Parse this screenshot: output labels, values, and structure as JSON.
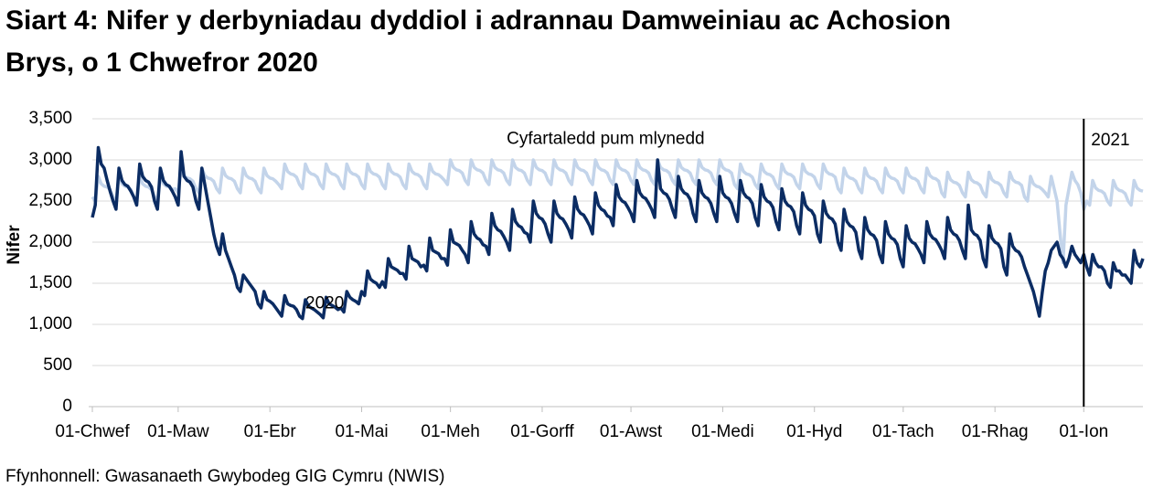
{
  "chart_data": {
    "type": "line",
    "title_lines": [
      "Siart 4: Nifer y derbyniadau dyddiol i adrannau Damweiniau ac Achosion",
      "Brys, o 1 Chwefror 2020"
    ],
    "y_label": "Nifer",
    "source": "Ffynhonnell: Gwasanaeth Gwybodeg GIG Cymru (NWIS)",
    "xlim": [
      0,
      355
    ],
    "xticks": [
      {
        "value": 0,
        "label": "01-Chwef"
      },
      {
        "value": 29,
        "label": "01-Maw"
      },
      {
        "value": 60,
        "label": "01-Ebr"
      },
      {
        "value": 91,
        "label": "01-Mai"
      },
      {
        "value": 121,
        "label": "01-Meh"
      },
      {
        "value": 152,
        "label": "01-Gorff"
      },
      {
        "value": 182,
        "label": "01-Awst"
      },
      {
        "value": 213,
        "label": "01-Medi"
      },
      {
        "value": 244,
        "label": "01-Hyd"
      },
      {
        "value": 274,
        "label": "01-Tach"
      },
      {
        "value": 305,
        "label": "01-Rhag"
      },
      {
        "value": 335,
        "label": "01-Ion"
      }
    ],
    "ylim": [
      0,
      3500
    ],
    "yticks": [
      0,
      500,
      {
        "value": 1000,
        "label": "1,000"
      },
      {
        "value": 1500,
        "label": "1,500"
      },
      {
        "value": 2000,
        "label": "2,000"
      },
      {
        "value": 2500,
        "label": "2,500"
      },
      {
        "value": 3000,
        "label": "3,000"
      },
      {
        "value": 3500,
        "label": "3,500"
      }
    ],
    "grid": true,
    "markers": [
      {
        "label": "2021",
        "x": 335
      }
    ],
    "x": [
      0,
      1,
      2,
      3,
      4,
      5,
      6,
      7,
      8,
      9,
      10,
      11,
      12,
      13,
      14,
      15,
      16,
      17,
      18,
      19,
      20,
      21,
      22,
      23,
      24,
      25,
      26,
      27,
      28,
      29,
      30,
      31,
      32,
      33,
      34,
      35,
      36,
      37,
      38,
      39,
      40,
      41,
      42,
      43,
      44,
      45,
      46,
      47,
      48,
      49,
      50,
      51,
      52,
      53,
      54,
      55,
      56,
      57,
      58,
      59,
      60,
      61,
      62,
      63,
      64,
      65,
      66,
      67,
      68,
      69,
      70,
      71,
      72,
      73,
      74,
      75,
      76,
      77,
      78,
      79,
      80,
      81,
      82,
      83,
      84,
      85,
      86,
      87,
      88,
      89,
      90,
      91,
      92,
      93,
      94,
      95,
      96,
      97,
      98,
      99,
      100,
      101,
      102,
      103,
      104,
      105,
      106,
      107,
      108,
      109,
      110,
      111,
      112,
      113,
      114,
      115,
      116,
      117,
      118,
      119,
      120,
      121,
      122,
      123,
      124,
      125,
      126,
      127,
      128,
      129,
      130,
      131,
      132,
      133,
      134,
      135,
      136,
      137,
      138,
      139,
      140,
      141,
      142,
      143,
      144,
      145,
      146,
      147,
      148,
      149,
      150,
      151,
      152,
      153,
      154,
      155,
      156,
      157,
      158,
      159,
      160,
      161,
      162,
      163,
      164,
      165,
      166,
      167,
      168,
      169,
      170,
      171,
      172,
      173,
      174,
      175,
      176,
      177,
      178,
      179,
      180,
      181,
      182,
      183,
      184,
      185,
      186,
      187,
      188,
      189,
      190,
      191,
      192,
      193,
      194,
      195,
      196,
      197,
      198,
      199,
      200,
      201,
      202,
      203,
      204,
      205,
      206,
      207,
      208,
      209,
      210,
      211,
      212,
      213,
      214,
      215,
      216,
      217,
      218,
      219,
      220,
      221,
      222,
      223,
      224,
      225,
      226,
      227,
      228,
      229,
      230,
      231,
      232,
      233,
      234,
      235,
      236,
      237,
      238,
      239,
      240,
      241,
      242,
      243,
      244,
      245,
      246,
      247,
      248,
      249,
      250,
      251,
      252,
      253,
      254,
      255,
      256,
      257,
      258,
      259,
      260,
      261,
      262,
      263,
      264,
      265,
      266,
      267,
      268,
      269,
      270,
      271,
      272,
      273,
      274,
      275,
      276,
      277,
      278,
      279,
      280,
      281,
      282,
      283,
      284,
      285,
      286,
      287,
      288,
      289,
      290,
      291,
      292,
      293,
      294,
      295,
      296,
      297,
      298,
      299,
      300,
      301,
      302,
      303,
      304,
      305,
      306,
      307,
      308,
      309,
      310,
      311,
      312,
      313,
      314,
      315,
      316,
      317,
      318,
      319,
      320,
      321,
      322,
      323,
      324,
      325,
      326,
      327,
      328,
      329,
      330,
      331,
      332,
      333,
      334,
      335,
      336,
      337,
      338,
      339,
      340,
      341,
      342,
      343,
      344,
      345,
      346,
      347,
      348,
      349,
      350,
      351,
      352,
      353,
      354,
      355
    ],
    "series": [
      {
        "name": "Cyfartaledd pum mlynedd",
        "color": "#c3d4ea",
        "label_x": 140,
        "label_y": 3250,
        "values": [
          2550,
          2500,
          2800,
          2710,
          2680,
          2670,
          2640,
          2550,
          2500,
          2800,
          2710,
          2680,
          2670,
          2640,
          2550,
          2500,
          2800,
          2710,
          2680,
          2670,
          2640,
          2550,
          2500,
          2800,
          2710,
          2680,
          2670,
          2640,
          2650,
          2600,
          2900,
          2810,
          2780,
          2770,
          2740,
          2650,
          2600,
          2900,
          2810,
          2780,
          2770,
          2740,
          2650,
          2600,
          2900,
          2810,
          2780,
          2770,
          2740,
          2650,
          2600,
          2900,
          2810,
          2780,
          2770,
          2740,
          2650,
          2600,
          2900,
          2810,
          2780,
          2770,
          2740,
          2700,
          2650,
          2950,
          2860,
          2830,
          2820,
          2790,
          2700,
          2650,
          2950,
          2860,
          2830,
          2820,
          2790,
          2700,
          2650,
          2950,
          2860,
          2830,
          2820,
          2790,
          2700,
          2650,
          2950,
          2860,
          2830,
          2820,
          2790,
          2700,
          2650,
          2950,
          2860,
          2830,
          2820,
          2790,
          2700,
          2650,
          2950,
          2860,
          2830,
          2820,
          2790,
          2700,
          2650,
          2950,
          2860,
          2830,
          2820,
          2790,
          2700,
          2650,
          2950,
          2860,
          2830,
          2820,
          2790,
          2750,
          2700,
          3000,
          2910,
          2880,
          2870,
          2840,
          2750,
          2700,
          3000,
          2910,
          2880,
          2870,
          2840,
          2750,
          2700,
          3000,
          2910,
          2880,
          2870,
          2840,
          2750,
          2700,
          3000,
          2910,
          2880,
          2870,
          2840,
          2750,
          2700,
          3000,
          2910,
          2880,
          2870,
          2840,
          2750,
          2700,
          3000,
          2910,
          2880,
          2870,
          2840,
          2750,
          2700,
          3000,
          2910,
          2880,
          2870,
          2840,
          2750,
          2700,
          3000,
          2910,
          2880,
          2870,
          2840,
          2750,
          2700,
          3000,
          2910,
          2880,
          2870,
          2840,
          2750,
          2700,
          3000,
          2910,
          2880,
          2870,
          2840,
          2750,
          2700,
          3000,
          2910,
          2880,
          2870,
          2840,
          2750,
          2700,
          3000,
          2910,
          2880,
          2870,
          2840,
          2750,
          2700,
          3000,
          2910,
          2880,
          2870,
          2840,
          2750,
          2700,
          3000,
          2910,
          2880,
          2870,
          2840,
          2700,
          2650,
          2950,
          2860,
          2830,
          2820,
          2790,
          2700,
          2650,
          2950,
          2860,
          2830,
          2820,
          2790,
          2700,
          2650,
          2950,
          2860,
          2830,
          2820,
          2790,
          2700,
          2650,
          2950,
          2860,
          2830,
          2820,
          2790,
          2700,
          2650,
          2950,
          2860,
          2830,
          2820,
          2790,
          2650,
          2600,
          2900,
          2810,
          2780,
          2770,
          2740,
          2650,
          2600,
          2900,
          2810,
          2780,
          2770,
          2740,
          2650,
          2600,
          2900,
          2810,
          2780,
          2770,
          2740,
          2650,
          2600,
          2900,
          2810,
          2780,
          2770,
          2740,
          2650,
          2600,
          2900,
          2810,
          2780,
          2770,
          2740,
          2600,
          2550,
          2850,
          2760,
          2730,
          2720,
          2690,
          2600,
          2550,
          2850,
          2760,
          2730,
          2720,
          2690,
          2600,
          2550,
          2850,
          2760,
          2730,
          2720,
          2690,
          2600,
          2550,
          2850,
          2760,
          2730,
          2720,
          2690,
          2550,
          2500,
          2800,
          2710,
          2680,
          2670,
          2640,
          2600,
          2550,
          2800,
          2650,
          2500,
          2100,
          1750,
          2450,
          2650,
          2850,
          2750,
          2700,
          2600,
          2400,
          2500,
          2450,
          2750,
          2660,
          2630,
          2620,
          2590,
          2500,
          2450,
          2750,
          2660,
          2630,
          2620,
          2590,
          2500,
          2450,
          2750,
          2660,
          2630,
          2620
        ]
      },
      {
        "name": "2020",
        "color": "#0b2c63",
        "label_x": 72,
        "label_y": 1250,
        "values": [
          2300,
          2450,
          3150,
          2950,
          2900,
          2750,
          2620,
          2500,
          2400,
          2900,
          2750,
          2700,
          2680,
          2620,
          2550,
          2450,
          2950,
          2800,
          2750,
          2730,
          2670,
          2500,
          2400,
          2900,
          2750,
          2700,
          2680,
          2620,
          2550,
          2450,
          3100,
          2800,
          2750,
          2730,
          2670,
          2500,
          2400,
          2900,
          2700,
          2500,
          2300,
          2100,
          1950,
          1850,
          2100,
          1900,
          1800,
          1700,
          1600,
          1450,
          1400,
          1600,
          1550,
          1500,
          1450,
          1400,
          1250,
          1200,
          1400,
          1300,
          1280,
          1250,
          1200,
          1150,
          1100,
          1350,
          1250,
          1230,
          1220,
          1180,
          1100,
          1070,
          1300,
          1220,
          1200,
          1180,
          1150,
          1120,
          1080,
          1330,
          1250,
          1230,
          1210,
          1180,
          1200,
          1150,
          1400,
          1330,
          1300,
          1280,
          1250,
          1400,
          1350,
          1650,
          1550,
          1520,
          1500,
          1450,
          1520,
          1450,
          1800,
          1700,
          1680,
          1660,
          1620,
          1620,
          1550,
          1950,
          1800,
          1780,
          1760,
          1700,
          1720,
          1650,
          2050,
          1900,
          1880,
          1860,
          1800,
          1800,
          1720,
          2150,
          2000,
          1980,
          1960,
          1900,
          1850,
          1750,
          2250,
          2100,
          2050,
          2030,
          1970,
          1950,
          1850,
          2350,
          2200,
          2150,
          2130,
          2070,
          2000,
          1900,
          2400,
          2250,
          2200,
          2180,
          2120,
          2100,
          2000,
          2500,
          2350,
          2300,
          2280,
          2220,
          2100,
          2000,
          2500,
          2350,
          2300,
          2280,
          2220,
          2150,
          2050,
          2550,
          2400,
          2350,
          2330,
          2270,
          2200,
          2100,
          2600,
          2450,
          2400,
          2380,
          2320,
          2300,
          2200,
          2700,
          2550,
          2500,
          2480,
          2420,
          2350,
          2250,
          2750,
          2600,
          2550,
          2530,
          2470,
          2400,
          2300,
          3000,
          2650,
          2600,
          2580,
          2520,
          2400,
          2300,
          2800,
          2650,
          2600,
          2580,
          2520,
          2350,
          2250,
          2750,
          2600,
          2550,
          2530,
          2470,
          2350,
          2250,
          2800,
          2600,
          2550,
          2530,
          2470,
          2350,
          2250,
          2750,
          2600,
          2550,
          2530,
          2470,
          2300,
          2200,
          2700,
          2550,
          2500,
          2480,
          2420,
          2250,
          2150,
          2650,
          2500,
          2450,
          2430,
          2370,
          2200,
          2100,
          2600,
          2450,
          2400,
          2380,
          2320,
          2100,
          2000,
          2500,
          2350,
          2300,
          2280,
          2220,
          2000,
          1900,
          2400,
          2250,
          2200,
          2180,
          2120,
          1900,
          1800,
          2300,
          2150,
          2100,
          2080,
          2020,
          1850,
          1750,
          2250,
          2100,
          2050,
          2030,
          1970,
          1800,
          1700,
          2200,
          2050,
          2000,
          1980,
          1920,
          1850,
          1750,
          2250,
          2100,
          2050,
          2030,
          1970,
          1900,
          1800,
          2300,
          2150,
          2100,
          2080,
          2020,
          1900,
          1800,
          2450,
          2150,
          2100,
          2080,
          2020,
          1800,
          1700,
          2200,
          2050,
          2000,
          1980,
          1920,
          1700,
          1600,
          2100,
          1950,
          1900,
          1880,
          1820,
          1700,
          1600,
          1500,
          1400,
          1250,
          1100,
          1400,
          1650,
          1750,
          1900,
          1950,
          2000,
          1850,
          1800,
          1700,
          1800,
          1950,
          1850,
          1800,
          1750,
          1850,
          1700,
          1600,
          1850,
          1750,
          1700,
          1700,
          1650,
          1500,
          1450,
          1750,
          1650,
          1650,
          1600,
          1600,
          1550,
          1500,
          1900,
          1750,
          1700,
          1800
        ]
      }
    ]
  }
}
